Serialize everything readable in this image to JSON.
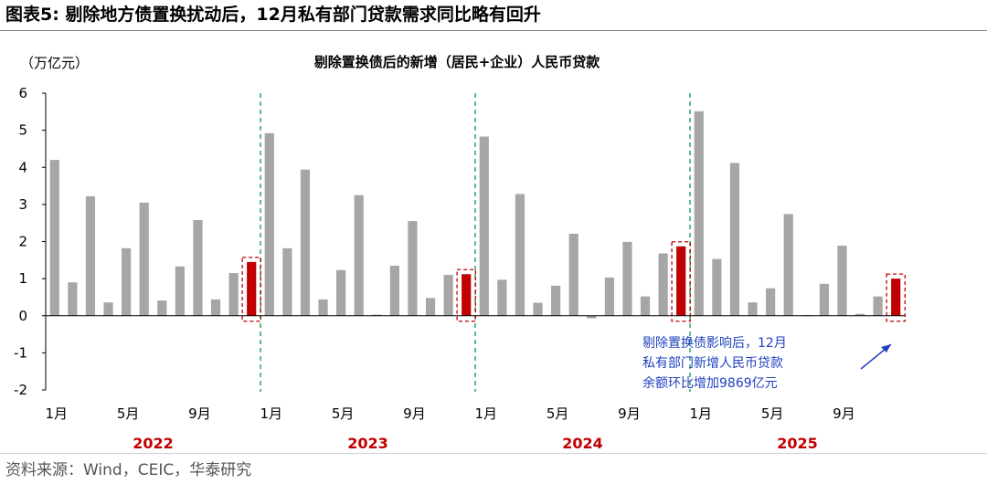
{
  "figure": {
    "title": "图表5:  剔除地方债置换扰动后，12月私有部门贷款需求同比略有回升",
    "source": "资料来源：Wind，CEIC，华泰研究"
  },
  "chart_data": {
    "type": "bar",
    "title": "剔除置换债后的新增（居民+企业）人民币贷款",
    "ylabel": "（万亿元）",
    "ylim": [
      -2,
      6
    ],
    "yticks": [
      "6",
      "5",
      "4",
      "3",
      "2",
      "1",
      "0",
      "-1",
      "-2"
    ],
    "ytick_values": [
      6,
      5,
      4,
      3,
      2,
      1,
      0,
      -1,
      -2
    ],
    "grid": false,
    "bar_color": "#a6a6a6",
    "highlight_color": "#c00000",
    "x_tick_labels": [
      "1月",
      "5月",
      "9月",
      "1月",
      "5月",
      "9月",
      "1月",
      "5月",
      "9月",
      "1月",
      "5月",
      "9月"
    ],
    "x_tick_month_index": [
      0,
      4,
      8,
      12,
      16,
      20,
      24,
      28,
      32,
      36,
      40,
      44
    ],
    "year_labels": [
      "2022",
      "2023",
      "2024",
      "2025"
    ],
    "year_center_month": [
      5.5,
      17.5,
      29.5,
      41.5
    ],
    "year_separator_after_month": [
      11.5,
      23.5,
      35.5
    ],
    "highlight_months": [
      11,
      23,
      35,
      47
    ],
    "values": [
      4.2,
      0.9,
      3.22,
      0.36,
      1.82,
      3.05,
      0.41,
      1.33,
      2.58,
      0.44,
      1.15,
      1.45,
      4.92,
      1.82,
      3.94,
      0.44,
      1.23,
      3.25,
      0.03,
      1.35,
      2.55,
      0.48,
      1.1,
      1.12,
      4.83,
      0.97,
      3.28,
      0.35,
      0.81,
      2.21,
      -0.07,
      1.03,
      1.99,
      0.52,
      1.68,
      1.87,
      5.51,
      1.53,
      4.12,
      0.36,
      0.74,
      2.74,
      0.02,
      0.86,
      1.89,
      0.05,
      0.52,
      1.0
    ],
    "annotation": {
      "lines": [
        "剔除置换债影响后，12月",
        "私有部门新增人民币贷款",
        "余额环比增加9869亿元"
      ],
      "color": "#2040c0"
    }
  }
}
